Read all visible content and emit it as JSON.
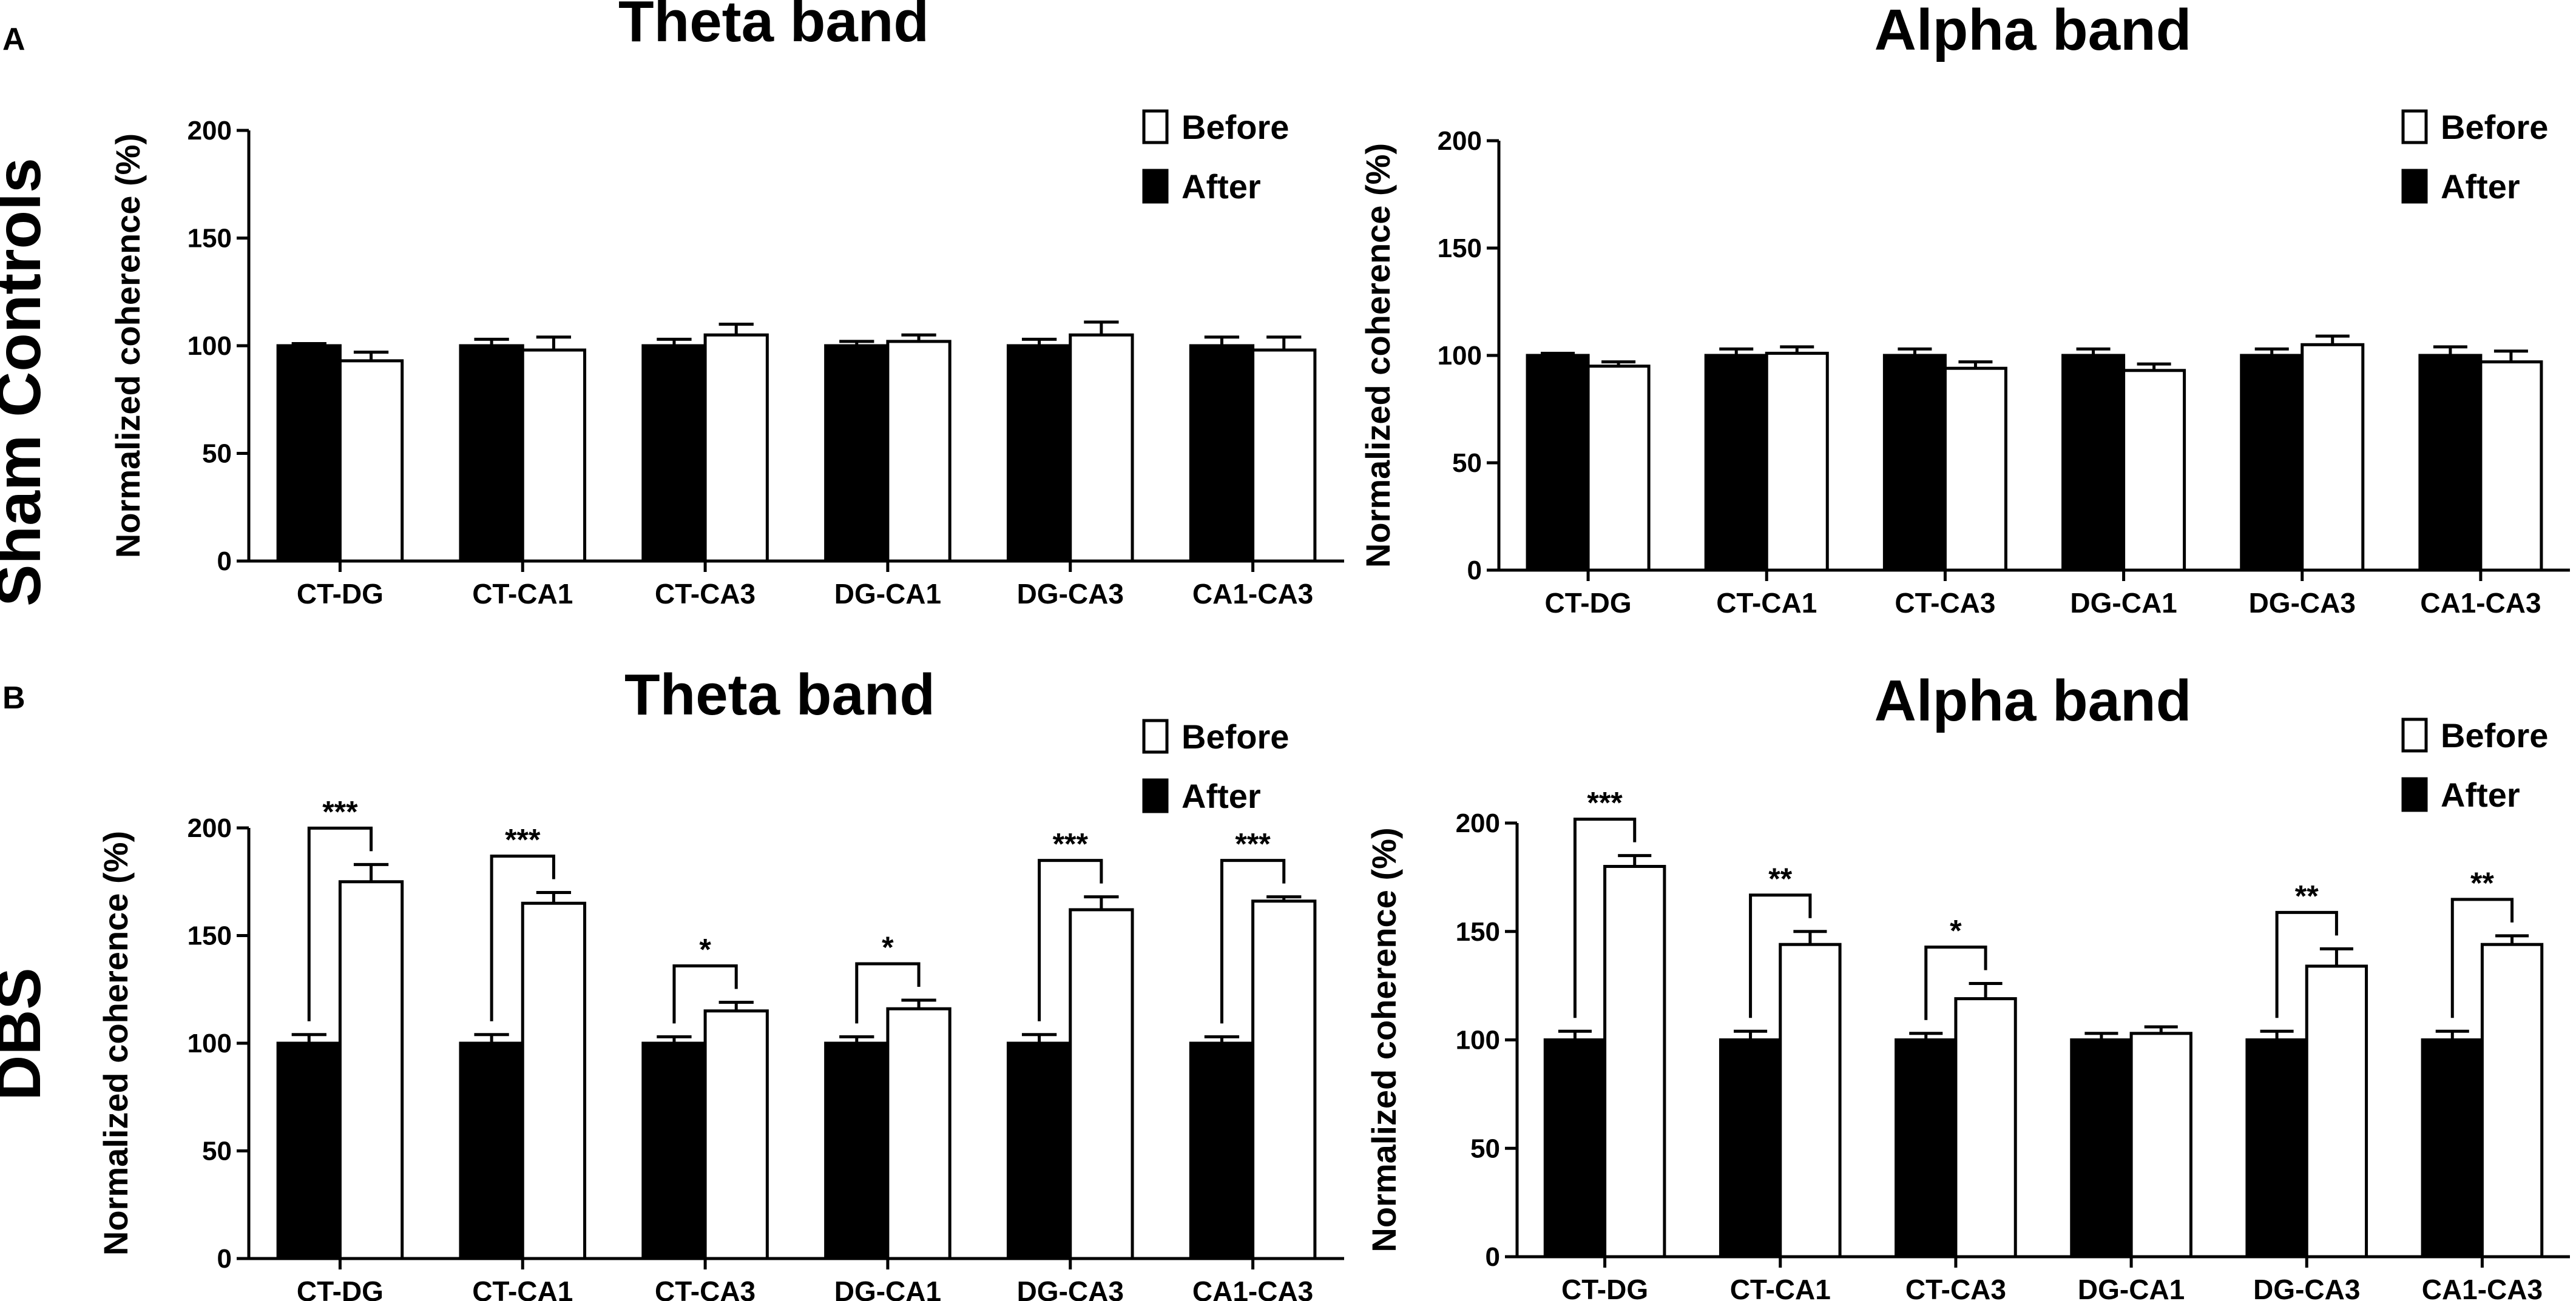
{
  "panels": {
    "a": "A",
    "b": "B"
  },
  "rows": {
    "sham": "Sham Controls",
    "dbs": "DBS"
  },
  "legend": {
    "before": "Before",
    "after": "After"
  },
  "colors": {
    "after": "#000000",
    "before": "#ffffff",
    "stroke": "#000000"
  },
  "chart_data": [
    {
      "id": "sham-theta",
      "type": "bar",
      "title": "Theta band",
      "xlabel": "",
      "ylabel": "Normalized coherence (%)",
      "ylim": [
        0,
        200
      ],
      "yticks": [
        0,
        50,
        100,
        150,
        200
      ],
      "legend": "top-right",
      "categories": [
        "CT-DG",
        "CT-CA1",
        "CT-CA3",
        "DG-CA1",
        "DG-CA3",
        "CA1-CA3"
      ],
      "series": [
        {
          "name": "After",
          "values": [
            100,
            100,
            100,
            100,
            100,
            100
          ],
          "errors": [
            1,
            3,
            3,
            2,
            3,
            4
          ]
        },
        {
          "name": "Before",
          "values": [
            93,
            98,
            105,
            102,
            105,
            98
          ],
          "errors": [
            4,
            6,
            5,
            3,
            6,
            6
          ]
        }
      ],
      "significance": [
        "",
        "",
        "",
        "",
        "",
        ""
      ]
    },
    {
      "id": "sham-alpha",
      "type": "bar",
      "title": "Alpha band",
      "xlabel": "",
      "ylabel": "Normalized coherence (%)",
      "ylim": [
        0,
        200
      ],
      "yticks": [
        0,
        50,
        100,
        150,
        200
      ],
      "legend": "top-right",
      "categories": [
        "CT-DG",
        "CT-CA1",
        "CT-CA3",
        "DG-CA1",
        "DG-CA3",
        "CA1-CA3"
      ],
      "series": [
        {
          "name": "After",
          "values": [
            100,
            100,
            100,
            100,
            100,
            100
          ],
          "errors": [
            1,
            3,
            3,
            3,
            3,
            4
          ]
        },
        {
          "name": "Before",
          "values": [
            95,
            101,
            94,
            93,
            105,
            97
          ],
          "errors": [
            2,
            3,
            3,
            3,
            4,
            5
          ]
        }
      ],
      "significance": [
        "",
        "",
        "",
        "",
        "",
        ""
      ]
    },
    {
      "id": "dbs-theta",
      "type": "bar",
      "title": "Theta band",
      "xlabel": "",
      "ylabel": "Normalized coherence (%)",
      "ylim": [
        0,
        200
      ],
      "yticks": [
        0,
        50,
        100,
        150,
        200
      ],
      "legend": "top-right",
      "categories": [
        "CT-DG",
        "CT-CA1",
        "CT-CA3",
        "DG-CA1",
        "DG-CA3",
        "CA1-CA3"
      ],
      "series": [
        {
          "name": "After",
          "values": [
            100,
            100,
            100,
            100,
            100,
            100
          ],
          "errors": [
            4,
            4,
            3,
            3,
            4,
            3
          ]
        },
        {
          "name": "Before",
          "values": [
            175,
            165,
            115,
            116,
            162,
            166
          ],
          "errors": [
            8,
            5,
            4,
            4,
            6,
            2
          ]
        }
      ],
      "significance": [
        "***",
        "***",
        "*",
        "*",
        "***",
        "***"
      ]
    },
    {
      "id": "dbs-alpha",
      "type": "bar",
      "title": "Alpha band",
      "xlabel": "",
      "ylabel": "Normalized coherence (%)",
      "ylim": [
        0,
        200
      ],
      "yticks": [
        0,
        50,
        100,
        150,
        200
      ],
      "legend": "top-right",
      "categories": [
        "CT-DG",
        "CT-CA1",
        "CT-CA3",
        "DG-CA1",
        "DG-CA3",
        "CA1-CA3"
      ],
      "series": [
        {
          "name": "After",
          "values": [
            100,
            100,
            100,
            100,
            100,
            100
          ],
          "errors": [
            4,
            4,
            3,
            3,
            4,
            4
          ]
        },
        {
          "name": "Before",
          "values": [
            180,
            144,
            119,
            103,
            134,
            144
          ],
          "errors": [
            5,
            6,
            7,
            3,
            8,
            4
          ]
        }
      ],
      "significance": [
        "***",
        "**",
        "*",
        "",
        "**",
        "**"
      ]
    }
  ]
}
